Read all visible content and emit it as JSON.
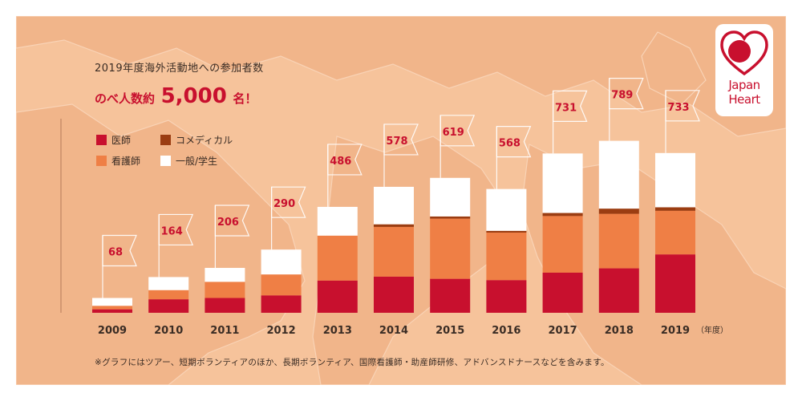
{
  "header": {
    "subtitle": "2019年度海外活動地への参加者数",
    "headline_prefix": "のべ人数約",
    "headline_number": "5,000",
    "headline_suffix": "名！"
  },
  "logo": {
    "line1": "Japan",
    "line2": "Heart"
  },
  "footnote": "※グラフにはツアー、短期ボランティアのほか、長期ボランティア、国際看護師・助産師研修、アドバンスドナースなどを含みます。",
  "axis_unit": "（年度）",
  "colors": {
    "doctor": "#c8102e",
    "nurse": "#ef7f45",
    "comedical": "#9b3d12",
    "general": "#ffffff",
    "panel": "#f6c39b"
  },
  "chart_data": {
    "type": "bar",
    "stacked": true,
    "categories": [
      "2009",
      "2010",
      "2011",
      "2012",
      "2013",
      "2014",
      "2015",
      "2016",
      "2017",
      "2018",
      "2019"
    ],
    "totals": [
      68,
      164,
      206,
      290,
      486,
      578,
      619,
      568,
      731,
      789,
      733
    ],
    "series": [
      {
        "name": "医師",
        "color": "#c8102e",
        "values": [
          16,
          62,
          68,
          80,
          148,
          166,
          156,
          150,
          184,
          204,
          268
        ]
      },
      {
        "name": "看護師",
        "color": "#ef7f45",
        "values": [
          16,
          42,
          74,
          96,
          206,
          228,
          276,
          218,
          260,
          250,
          200
        ]
      },
      {
        "name": "コメディカル",
        "color": "#9b3d12",
        "values": [
          0,
          0,
          0,
          0,
          0,
          12,
          10,
          8,
          14,
          24,
          16
        ]
      },
      {
        "name": "一般/学生",
        "color": "#ffffff",
        "values": [
          36,
          60,
          64,
          114,
          132,
          172,
          177,
          192,
          273,
          311,
          249
        ]
      }
    ],
    "ylim": [
      0,
      920
    ],
    "legend": "top-left"
  }
}
